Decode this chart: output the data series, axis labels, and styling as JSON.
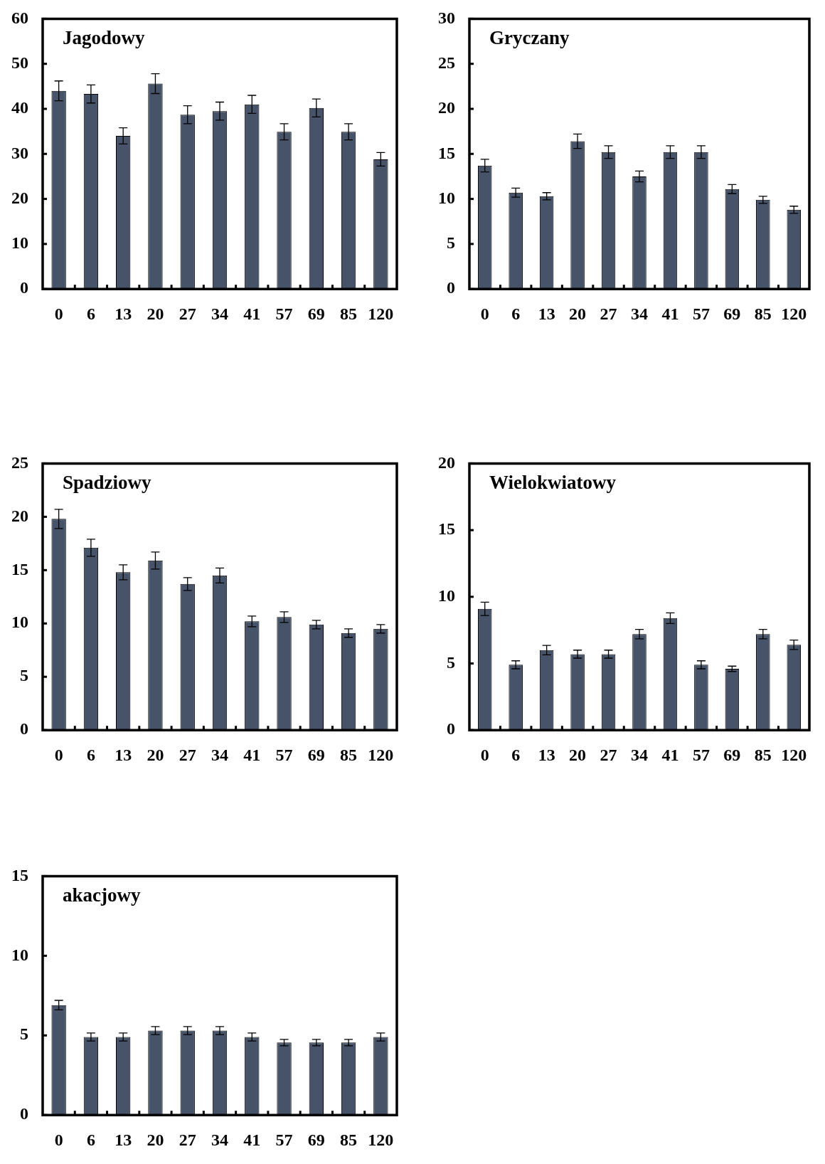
{
  "chart_data": [
    {
      "type": "bar",
      "title": "Jagodowy",
      "categories": [
        "0",
        "6",
        "13",
        "20",
        "27",
        "34",
        "41",
        "57",
        "69",
        "85",
        "120"
      ],
      "values": [
        44,
        43.3,
        34,
        45.6,
        38.7,
        39.5,
        41,
        34.9,
        40.2,
        34.9,
        28.8
      ],
      "errors": [
        2.2,
        2,
        1.8,
        2.2,
        2,
        2,
        2,
        1.8,
        2,
        1.8,
        1.5
      ],
      "color": "#465369",
      "ylim": [
        0,
        60
      ],
      "yticks": [
        0,
        10,
        20,
        30,
        40,
        50,
        60
      ]
    },
    {
      "type": "bar",
      "title": "Gryczany",
      "categories": [
        "0",
        "6",
        "13",
        "20",
        "27",
        "34",
        "41",
        "57",
        "69",
        "85",
        "120"
      ],
      "values": [
        13.7,
        10.7,
        10.3,
        16.4,
        15.2,
        12.5,
        15.2,
        15.2,
        11.1,
        9.9,
        8.8
      ],
      "errors": [
        0.7,
        0.5,
        0.4,
        0.8,
        0.7,
        0.6,
        0.7,
        0.7,
        0.5,
        0.4,
        0.4
      ],
      "color": "#465369",
      "ylim": [
        0,
        30
      ],
      "yticks": [
        0,
        5,
        10,
        15,
        20,
        25,
        30
      ]
    },
    {
      "type": "bar",
      "title": "Spadziowy",
      "categories": [
        "0",
        "6",
        "13",
        "20",
        "27",
        "34",
        "41",
        "57",
        "69",
        "85",
        "120"
      ],
      "values": [
        19.8,
        17.1,
        14.8,
        15.9,
        13.7,
        14.5,
        10.2,
        10.6,
        9.9,
        9.1,
        9.5
      ],
      "errors": [
        0.9,
        0.8,
        0.7,
        0.8,
        0.6,
        0.7,
        0.5,
        0.5,
        0.4,
        0.4,
        0.4
      ],
      "color": "#465369",
      "ylim": [
        0,
        25
      ],
      "yticks": [
        0,
        5,
        10,
        15,
        20,
        25
      ]
    },
    {
      "type": "bar",
      "title": "Wielokwiatowy",
      "categories": [
        "0",
        "6",
        "13",
        "20",
        "27",
        "34",
        "41",
        "57",
        "69",
        "85",
        "120"
      ],
      "values": [
        9.1,
        4.9,
        6,
        5.7,
        5.7,
        7.2,
        8.4,
        4.9,
        4.6,
        7.2,
        6.4
      ],
      "errors": [
        0.5,
        0.3,
        0.35,
        0.3,
        0.3,
        0.35,
        0.4,
        0.3,
        0.2,
        0.35,
        0.35
      ],
      "color": "#465369",
      "ylim": [
        0,
        20
      ],
      "yticks": [
        0,
        5,
        10,
        15,
        20
      ]
    },
    {
      "type": "bar",
      "title": "akacjowy",
      "categories": [
        "0",
        "6",
        "13",
        "20",
        "27",
        "34",
        "41",
        "57",
        "69",
        "85",
        "120"
      ],
      "values": [
        6.9,
        4.9,
        4.9,
        5.3,
        5.3,
        5.3,
        4.9,
        4.55,
        4.55,
        4.55,
        4.9
      ],
      "errors": [
        0.3,
        0.25,
        0.25,
        0.25,
        0.25,
        0.25,
        0.25,
        0.2,
        0.2,
        0.2,
        0.25
      ],
      "color": "#465369",
      "ylim": [
        0,
        15
      ],
      "yticks": [
        0,
        5,
        10,
        15
      ]
    }
  ]
}
